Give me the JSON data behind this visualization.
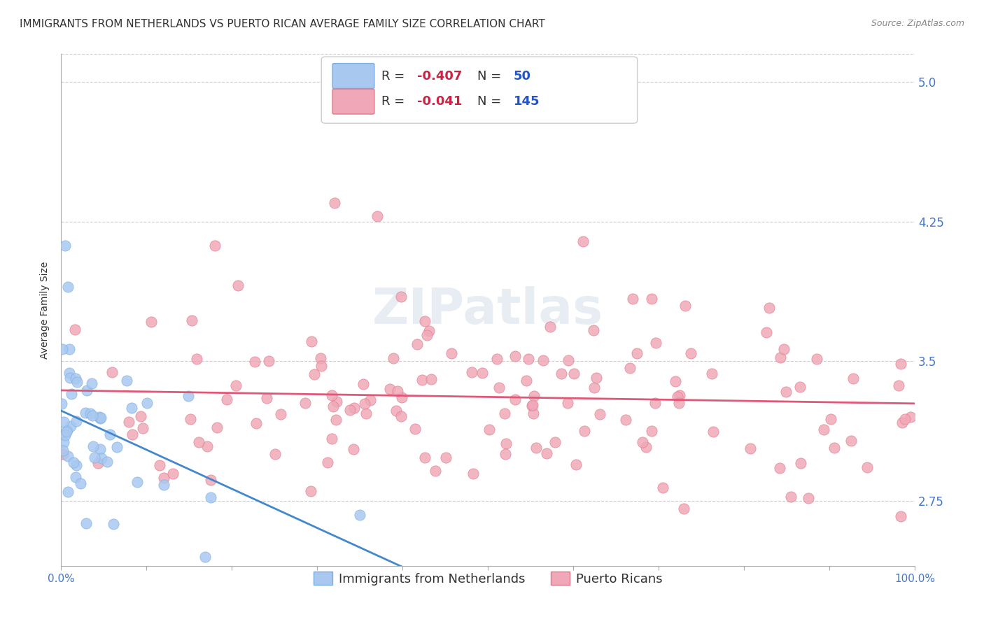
{
  "title": "IMMIGRANTS FROM NETHERLANDS VS PUERTO RICAN AVERAGE FAMILY SIZE CORRELATION CHART",
  "source": "Source: ZipAtlas.com",
  "ylabel": "Average Family Size",
  "xlim": [
    0,
    1
  ],
  "ylim": [
    2.4,
    5.15
  ],
  "yticks": [
    2.75,
    3.5,
    4.25,
    5.0
  ],
  "background_color": "#ffffff",
  "grid_color": "#cccccc",
  "series1": {
    "name": "Immigrants from Netherlands",
    "color": "#a8c8f0",
    "edge_color": "#7aaee0",
    "trend_color": "#4488cc",
    "R": -0.407,
    "N": 50
  },
  "series2": {
    "name": "Puerto Ricans",
    "color": "#f0a8b8",
    "edge_color": "#e07888",
    "trend_color": "#e05878",
    "R": -0.041,
    "N": 145
  },
  "watermark": "ZIPatlas",
  "title_fontsize": 11,
  "label_fontsize": 10,
  "tick_fontsize": 11,
  "legend_fontsize": 13,
  "tick_color": "#4477cc"
}
